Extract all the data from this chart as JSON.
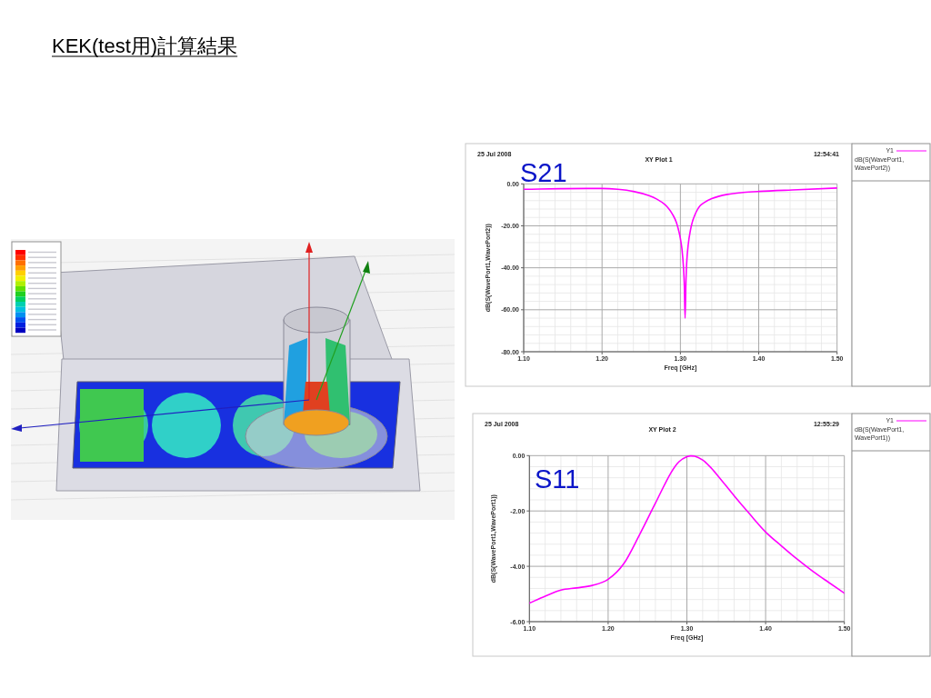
{
  "chart_data": [
    {
      "type": "other",
      "title": "KEK(test用)計算結果"
    },
    {
      "type": "line",
      "title": "XY Plot 1",
      "annotations": [
        "25 Jul 2008",
        "12:54:41",
        "S21"
      ],
      "xlabel": "Freq [GHz]",
      "ylabel": "dB(S(WavePort1,WavePort2))",
      "legend_title": "Y1",
      "legend": "top right",
      "grid": true,
      "xlim": [
        1.1,
        1.5
      ],
      "xticks": [
        {
          "value": 1.1,
          "label": "1.10"
        },
        {
          "value": 1.2,
          "label": "1.20"
        },
        {
          "value": 1.3,
          "label": "1.30"
        },
        {
          "value": 1.4,
          "label": "1.40"
        },
        {
          "value": 1.5,
          "label": "1.50"
        }
      ],
      "ylim": [
        -80,
        0
      ],
      "yticks": [
        {
          "value": -80,
          "label": "-80.00"
        },
        {
          "value": -60,
          "label": "-60.00"
        },
        {
          "value": -40,
          "label": "-40.00"
        },
        {
          "value": -20,
          "label": "-20.00"
        },
        {
          "value": 0,
          "label": "0.00"
        }
      ],
      "series": [
        {
          "name": "dB(S(WavePort1,WavePort2))",
          "color": "#ff00ff",
          "x": [
            1.1,
            1.12,
            1.15,
            1.18,
            1.2,
            1.22,
            1.24,
            1.26,
            1.27,
            1.28,
            1.285,
            1.29,
            1.295,
            1.3,
            1.302,
            1.304,
            1.305,
            1.306,
            1.307,
            1.308,
            1.31,
            1.314,
            1.32,
            1.325,
            1.33,
            1.34,
            1.36,
            1.38,
            1.4,
            1.45,
            1.5
          ],
          "values": [
            -2.6,
            -2.5,
            -2.3,
            -2.2,
            -2.2,
            -2.6,
            -3.6,
            -5.6,
            -7.3,
            -9.8,
            -11.8,
            -14.5,
            -18.5,
            -26,
            -31,
            -40,
            -48,
            -64,
            -48,
            -38,
            -29,
            -20,
            -13.5,
            -10.5,
            -9,
            -7,
            -5,
            -4.1,
            -3.6,
            -2.8,
            -2
          ]
        }
      ]
    },
    {
      "type": "line",
      "title": "XY Plot 2",
      "annotations": [
        "25 Jul 2008",
        "12:55:29",
        "S11"
      ],
      "xlabel": "Freq [GHz]",
      "ylabel": "dB(S(WavePort1,WavePort1))",
      "legend_title": "Y1",
      "legend": "top right",
      "grid": true,
      "xlim": [
        1.1,
        1.5
      ],
      "xticks": [
        {
          "value": 1.1,
          "label": "1.10"
        },
        {
          "value": 1.2,
          "label": "1.20"
        },
        {
          "value": 1.3,
          "label": "1.30"
        },
        {
          "value": 1.4,
          "label": "1.40"
        },
        {
          "value": 1.5,
          "label": "1.50"
        }
      ],
      "ylim": [
        -6,
        0
      ],
      "yticks": [
        {
          "value": -6,
          "label": "-6.00"
        },
        {
          "value": -4,
          "label": "-4.00"
        },
        {
          "value": -2,
          "label": "-2.00"
        },
        {
          "value": 0,
          "label": "0.00"
        }
      ],
      "series": [
        {
          "name": "dB(S(WavePort1,WavePort1))",
          "color": "#ff00ff",
          "x": [
            1.1,
            1.12,
            1.14,
            1.16,
            1.18,
            1.2,
            1.22,
            1.24,
            1.26,
            1.28,
            1.29,
            1.3,
            1.305,
            1.31,
            1.32,
            1.33,
            1.34,
            1.36,
            1.38,
            1.4,
            1.42,
            1.44,
            1.46,
            1.48,
            1.5
          ],
          "values": [
            -5.33,
            -5.08,
            -4.86,
            -4.78,
            -4.69,
            -4.47,
            -3.9,
            -2.85,
            -1.72,
            -0.61,
            -0.22,
            -0.04,
            -0.01,
            -0.02,
            -0.16,
            -0.42,
            -0.75,
            -1.45,
            -2.12,
            -2.76,
            -3.26,
            -3.74,
            -4.18,
            -4.58,
            -4.97
          ]
        }
      ]
    }
  ]
}
